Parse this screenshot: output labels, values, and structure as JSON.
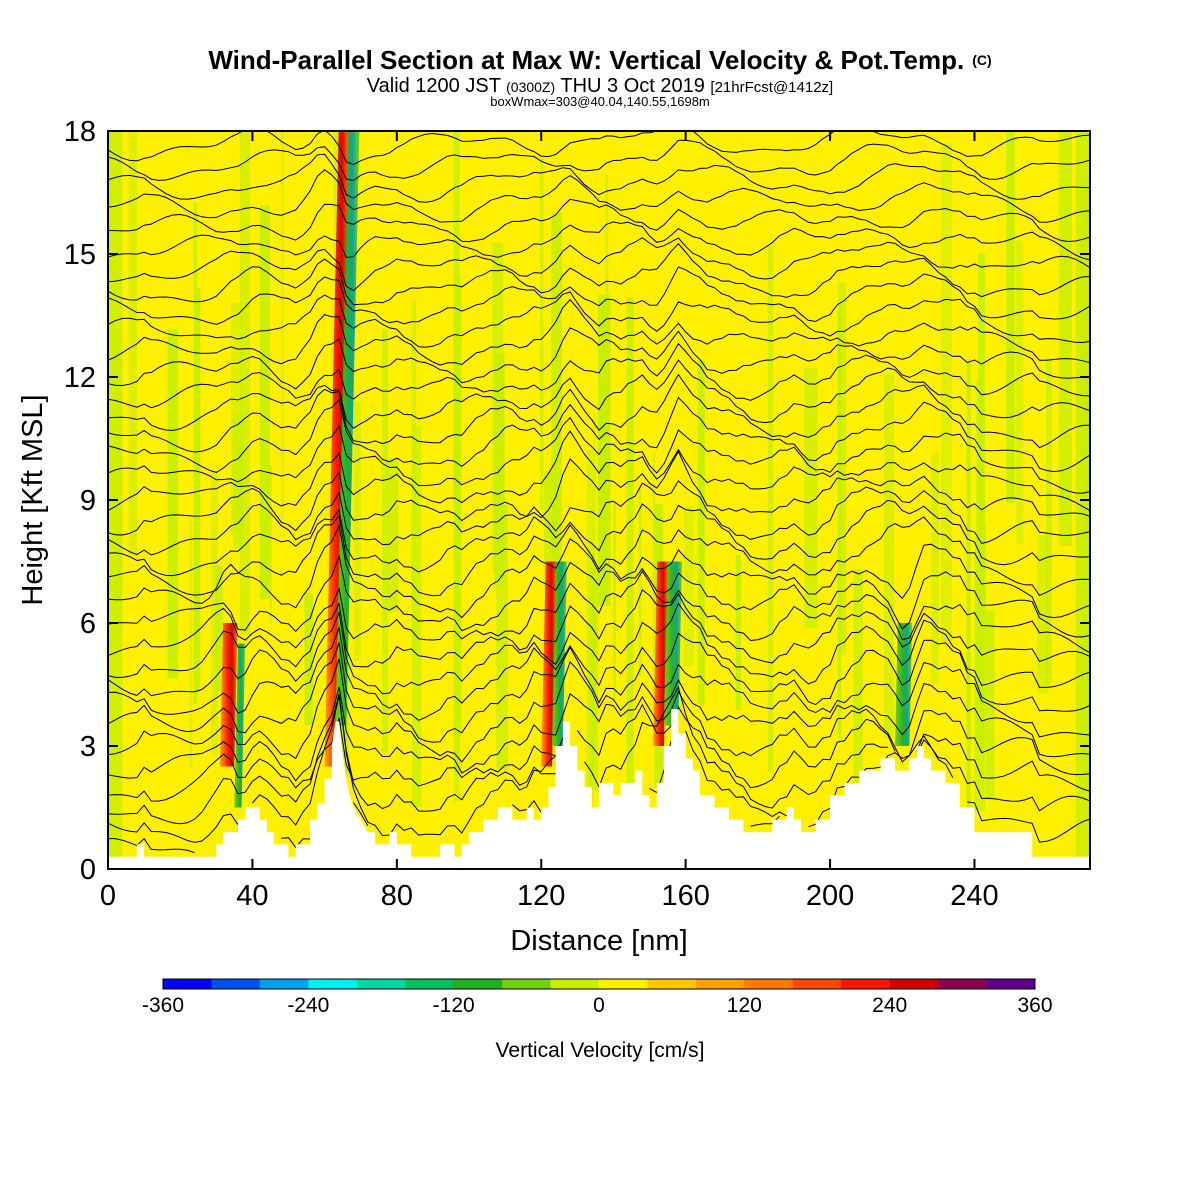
{
  "chart_data": {
    "type": "heatmap",
    "title": "Wind-Parallel Section at Max W: Vertical Velocity & Pot.Temp.",
    "title_mark": "(C)",
    "subtitle_parts": [
      "Valid 1200 JST ",
      "(0300Z)",
      " THU 3 Oct 2019 ",
      "[21hrFcst@1412z]"
    ],
    "subtitle2": "boxWmax=303@40.04,140.55,1698m",
    "xlabel": "Distance [nm]",
    "ylabel": "Height [Kft MSL]",
    "xlim": [
      0,
      272
    ],
    "ylim": [
      0,
      18
    ],
    "xticks": [
      "0",
      "40",
      "80",
      "120",
      "160",
      "200",
      "240"
    ],
    "xtick_values": [
      0,
      40,
      80,
      120,
      160,
      200,
      240
    ],
    "yticks": [
      "0",
      "3",
      "6",
      "9",
      "12",
      "15",
      "18"
    ],
    "ytick_values": [
      0,
      3,
      6,
      9,
      12,
      15,
      18
    ],
    "colorbar": {
      "label": "Vertical Velocity [cm/s]",
      "tick_labels": [
        "-360",
        "-240",
        "-120",
        "0",
        "120",
        "240",
        "360"
      ],
      "tick_values": [
        -360,
        -240,
        -120,
        0,
        120,
        240,
        360
      ],
      "levels": [
        -360,
        -330,
        -300,
        -270,
        -240,
        -210,
        -180,
        -150,
        -120,
        -90,
        -60,
        -30,
        0,
        30,
        60,
        90,
        120,
        150,
        180,
        210,
        240,
        270,
        300,
        330,
        360
      ],
      "colors": [
        "#0000ff",
        "#0050f0",
        "#00a0f0",
        "#00f0f0",
        "#00d8a0",
        "#00c060",
        "#20b020",
        "#70d010",
        "#c8ee00",
        "#fff000",
        "#ffc800",
        "#ffa000",
        "#ff7800",
        "#ff4800",
        "#ff1400",
        "#d00000",
        "#900050",
        "#600090"
      ]
    },
    "terrain": {
      "x": [
        0,
        8,
        8,
        10,
        10,
        15,
        15,
        30,
        30,
        32,
        32,
        36,
        36,
        38,
        38,
        42,
        42,
        44,
        44,
        46,
        46,
        50,
        50,
        52,
        52,
        56,
        56,
        58,
        58,
        60,
        60,
        62,
        62,
        63,
        64,
        65,
        66,
        67,
        68,
        70,
        72,
        74,
        74,
        78,
        78,
        80,
        80,
        84,
        84,
        88,
        88,
        92,
        92,
        96,
        96,
        98,
        98,
        100,
        100,
        104,
        104,
        108,
        108,
        112,
        112,
        116,
        116,
        118,
        118,
        120,
        120,
        122,
        122,
        124,
        124,
        126,
        126,
        128,
        128,
        130,
        130,
        132,
        132,
        134,
        134,
        136,
        136,
        140,
        140,
        142,
        142,
        146,
        146,
        148,
        148,
        150,
        150,
        152,
        152,
        154,
        154,
        156,
        156,
        158,
        158,
        160,
        160,
        162,
        162,
        164,
        164,
        168,
        168,
        172,
        172,
        176,
        176,
        180,
        180,
        184,
        184,
        188,
        188,
        190,
        190,
        192,
        192,
        196,
        196,
        200,
        200,
        204,
        204,
        208,
        208,
        212,
        212,
        214,
        214,
        218,
        218,
        220,
        220,
        222,
        222,
        224,
        224,
        226,
        226,
        228,
        228,
        232,
        232,
        236,
        236,
        240,
        240,
        244,
        244,
        248,
        248,
        252,
        252,
        256,
        256,
        260,
        260,
        264,
        264,
        268,
        268,
        272
      ],
      "h": [
        0.3,
        0.3,
        0.6,
        0.6,
        0.3,
        0.3,
        0.3,
        0.3,
        0.6,
        0.6,
        0.9,
        0.9,
        1.2,
        1.2,
        1.5,
        1.5,
        1.2,
        1.2,
        0.9,
        0.9,
        0.6,
        0.6,
        0.3,
        0.3,
        0.6,
        0.6,
        1.2,
        1.2,
        1.6,
        1.6,
        2.2,
        2.2,
        3.0,
        3.6,
        3.6,
        2.8,
        2.2,
        1.8,
        1.5,
        1.2,
        0.9,
        0.9,
        0.6,
        0.6,
        0.9,
        0.9,
        0.6,
        0.6,
        0.3,
        0.3,
        0.3,
        0.3,
        0.6,
        0.6,
        0.3,
        0.3,
        0.6,
        0.6,
        0.9,
        0.9,
        1.2,
        1.2,
        1.5,
        1.5,
        1.2,
        1.2,
        1.5,
        1.5,
        1.2,
        1.2,
        1.5,
        1.5,
        2.0,
        2.0,
        3.0,
        3.0,
        3.6,
        3.6,
        3.0,
        3.0,
        2.4,
        2.4,
        2.0,
        2.0,
        1.5,
        1.5,
        2.1,
        2.1,
        1.8,
        1.8,
        2.1,
        2.1,
        2.4,
        2.4,
        1.8,
        1.8,
        1.5,
        1.5,
        2.1,
        2.1,
        3.0,
        3.0,
        3.9,
        3.9,
        3.3,
        3.3,
        2.7,
        2.7,
        2.4,
        2.4,
        1.8,
        1.8,
        1.5,
        1.5,
        1.2,
        1.2,
        0.9,
        0.9,
        0.9,
        0.9,
        1.2,
        1.2,
        1.5,
        1.5,
        1.2,
        1.2,
        0.9,
        0.9,
        1.2,
        1.2,
        1.8,
        1.8,
        2.1,
        2.1,
        2.4,
        2.4,
        2.4,
        2.4,
        2.7,
        2.7,
        2.4,
        2.4,
        2.4,
        2.4,
        2.7,
        2.7,
        3.0,
        3.0,
        2.7,
        2.7,
        2.4,
        2.4,
        2.1,
        2.1,
        1.5,
        1.5,
        0.9,
        0.9,
        0.9,
        0.9,
        0.9,
        0.9,
        0.9,
        0.9,
        0.3,
        0.3,
        0.3,
        0.3,
        0.3,
        0.3,
        0.3,
        0.3,
        0.3
      ]
    },
    "features": [
      {
        "kind": "updraft",
        "x0": 31,
        "x1": 35,
        "y0": 2.5,
        "y1": 6.0,
        "w": 220
      },
      {
        "kind": "downdraft",
        "x0": 35,
        "x1": 37,
        "y0": 1.5,
        "y1": 5.5,
        "w": -90
      },
      {
        "kind": "updraft",
        "x0": 60,
        "x1": 63,
        "y0": 2.5,
        "y1": 18.0,
        "w": 300
      },
      {
        "kind": "downdraft",
        "x0": 63,
        "x1": 66,
        "y0": 3.5,
        "y1": 18.0,
        "w": -200
      },
      {
        "kind": "updraft",
        "x0": 120,
        "x1": 123,
        "y0": 2.5,
        "y1": 7.5,
        "w": 240
      },
      {
        "kind": "downdraft",
        "x0": 123,
        "x1": 126,
        "y0": 3.0,
        "y1": 7.5,
        "w": -150
      },
      {
        "kind": "updraft",
        "x0": 151,
        "x1": 154,
        "y0": 3.0,
        "y1": 7.5,
        "w": 180
      },
      {
        "kind": "downdraft",
        "x0": 154,
        "x1": 158,
        "y0": 3.5,
        "y1": 7.5,
        "w": -120
      },
      {
        "kind": "downdraft",
        "x0": 218,
        "x1": 222,
        "y0": 3.0,
        "y1": 6.0,
        "w": -60
      }
    ],
    "isentrope_count": 36,
    "grid": false
  }
}
